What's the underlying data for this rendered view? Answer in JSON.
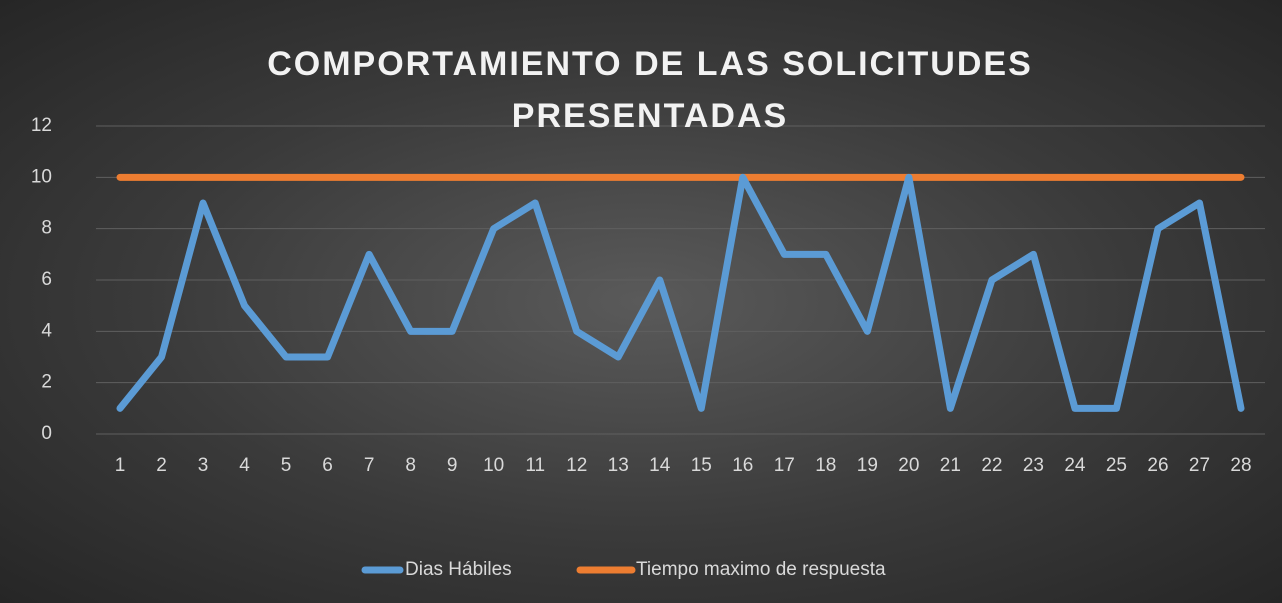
{
  "chart_data": {
    "type": "line",
    "title": "COMPORTAMIENTO DE LAS SOLICITUDES PRESENTADAS",
    "categories": [
      "1",
      "2",
      "3",
      "4",
      "5",
      "6",
      "7",
      "8",
      "9",
      "10",
      "11",
      "12",
      "13",
      "14",
      "15",
      "16",
      "17",
      "18",
      "19",
      "20",
      "21",
      "22",
      "23",
      "24",
      "25",
      "26",
      "27",
      "28"
    ],
    "series": [
      {
        "name": "Dias Hábiles",
        "color": "#5b9bd5",
        "values": [
          1,
          3,
          9,
          5,
          3,
          3,
          7,
          4,
          4,
          8,
          9,
          4,
          3,
          6,
          1,
          10,
          7,
          7,
          4,
          10,
          1,
          6,
          7,
          1,
          1,
          8,
          9,
          1
        ]
      },
      {
        "name": "Tiempo maximo de respuesta",
        "color": "#ed7d31",
        "values": [
          10,
          10,
          10,
          10,
          10,
          10,
          10,
          10,
          10,
          10,
          10,
          10,
          10,
          10,
          10,
          10,
          10,
          10,
          10,
          10,
          10,
          10,
          10,
          10,
          10,
          10,
          10,
          10
        ]
      }
    ],
    "ylim": [
      0,
      12
    ],
    "yticks": [
      0,
      2,
      4,
      6,
      8,
      10,
      12
    ],
    "grid": true,
    "legend": "bottom"
  }
}
